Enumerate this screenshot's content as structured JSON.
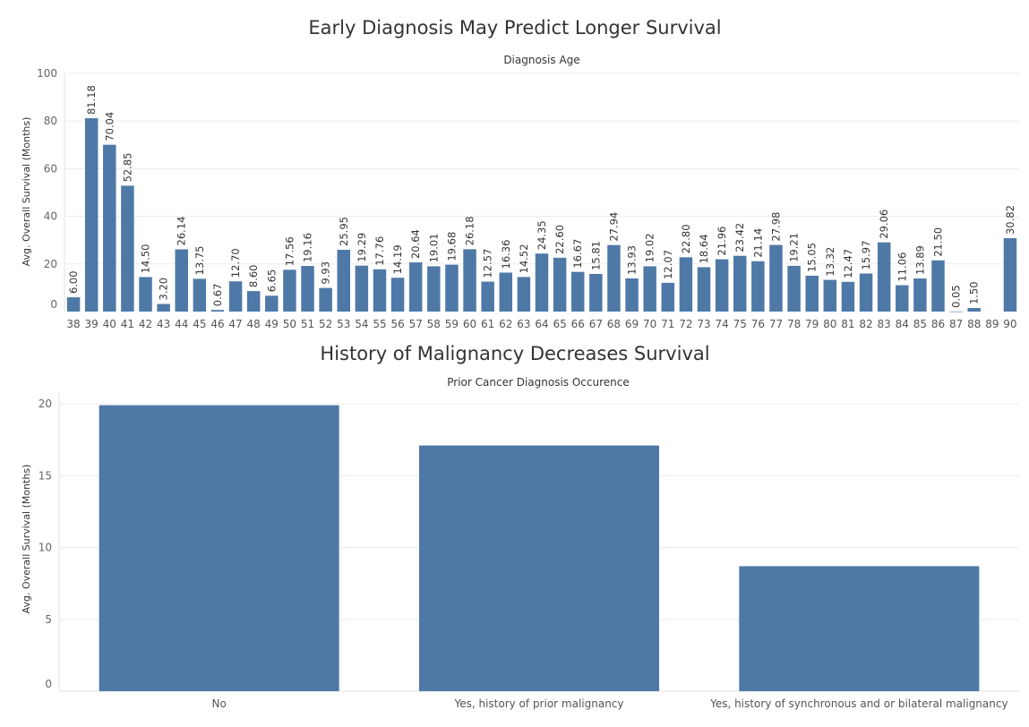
{
  "chart_data": [
    {
      "type": "bar",
      "title": "Early Diagnosis May Predict Longer Survival",
      "subtitle": "Diagnosis Age",
      "ylabel": "Avg. Overall Survival (Months)",
      "ylim": [
        0,
        100
      ],
      "yticks": [
        0,
        20,
        40,
        60,
        80,
        100
      ],
      "grid": true,
      "color": "#4e79a7",
      "categories": [
        "38",
        "39",
        "40",
        "41",
        "42",
        "43",
        "44",
        "45",
        "46",
        "47",
        "48",
        "49",
        "50",
        "51",
        "52",
        "53",
        "54",
        "55",
        "56",
        "57",
        "58",
        "59",
        "60",
        "61",
        "62",
        "63",
        "64",
        "65",
        "66",
        "67",
        "68",
        "69",
        "70",
        "71",
        "72",
        "73",
        "74",
        "75",
        "76",
        "77",
        "78",
        "79",
        "80",
        "81",
        "82",
        "83",
        "84",
        "85",
        "86",
        "87",
        "88",
        "89",
        "90"
      ],
      "values": [
        6.0,
        81.18,
        70.04,
        52.85,
        14.5,
        3.2,
        26.14,
        13.75,
        0.67,
        12.7,
        8.6,
        6.65,
        17.56,
        19.16,
        9.93,
        25.95,
        19.29,
        17.76,
        14.19,
        20.64,
        19.01,
        19.68,
        26.18,
        12.57,
        16.36,
        14.52,
        24.35,
        22.6,
        16.67,
        15.81,
        27.94,
        13.93,
        19.02,
        12.07,
        22.8,
        18.64,
        21.96,
        23.42,
        21.14,
        27.98,
        19.21,
        15.05,
        13.32,
        12.47,
        15.97,
        29.06,
        11.06,
        13.89,
        21.5,
        0.05,
        1.5,
        null,
        30.82
      ],
      "data_labels": [
        "6.00",
        "81.18",
        "70.04",
        "52.85",
        "14.50",
        "3.20",
        "26.14",
        "13.75",
        "0.67",
        "12.70",
        "8.60",
        "6.65",
        "17.56",
        "19.16",
        "9.93",
        "25.95",
        "19.29",
        "17.76",
        "14.19",
        "20.64",
        "19.01",
        "19.68",
        "26.18",
        "12.57",
        "16.36",
        "14.52",
        "24.35",
        "22.60",
        "16.67",
        "15.81",
        "27.94",
        "13.93",
        "19.02",
        "12.07",
        "22.80",
        "18.64",
        "21.96",
        "23.42",
        "21.14",
        "27.98",
        "19.21",
        "15.05",
        "13.32",
        "12.47",
        "15.97",
        "29.06",
        "11.06",
        "13.89",
        "21.50",
        "0.05",
        "1.50",
        "",
        "30.82"
      ]
    },
    {
      "type": "bar",
      "title": "History of Malignancy Decreases Survival",
      "subtitle": "Prior Cancer Diagnosis Occurence",
      "ylabel": "Avg. Overall Survival (Months)",
      "ylim": [
        0,
        20
      ],
      "yticks": [
        0,
        5,
        10,
        15,
        20
      ],
      "grid": true,
      "color": "#4e79a7",
      "categories": [
        "No",
        "Yes, history of prior malignancy",
        "Yes, history of synchronous and or bilateral malignancy"
      ],
      "values": [
        19.9,
        17.1,
        8.7
      ]
    }
  ]
}
